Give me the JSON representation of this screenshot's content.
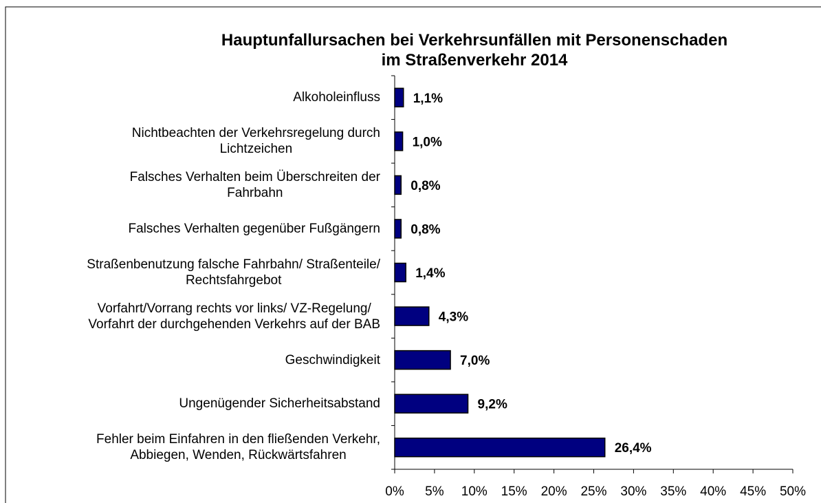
{
  "chart_data": {
    "type": "bar",
    "orientation": "horizontal",
    "title": "Hauptunfallursachen bei Verkehrsunfällen mit Personenschaden\nim Straßenverkehr 2014",
    "categories": [
      "Alkoholeinfluss",
      "Nichtbeachten der Verkehrsregelung durch\nLichtzeichen",
      "Falsches Verhalten beim Überschreiten der\nFahrbahn",
      "Falsches Verhalten gegenüber Fußgängern",
      "Straßenbenutzung falsche Fahrbahn/ Straßenteile/\nRechtsfahrgebot",
      "Vorfahrt/Vorrang rechts vor links/ VZ-Regelung/\nVorfahrt der durchgehenden Verkehrs auf der BAB",
      "Geschwindigkeit",
      "Ungenügender Sicherheitsabstand",
      "Fehler beim Einfahren in den fließenden Verkehr,\nAbbiegen, Wenden, Rückwärtsfahren"
    ],
    "values": [
      1.1,
      1.0,
      0.8,
      0.8,
      1.4,
      4.3,
      7.0,
      9.2,
      26.4
    ],
    "value_labels": [
      "1,1%",
      "1,0%",
      "0,8%",
      "0,8%",
      "1,4%",
      "4,3%",
      "7,0%",
      "9,2%",
      "26,4%"
    ],
    "color": "#000080",
    "xlim": [
      0,
      50
    ],
    "xticks": [
      {
        "value": 0,
        "label": "0%"
      },
      {
        "value": 5,
        "label": "5%"
      },
      {
        "value": 10,
        "label": "10%"
      },
      {
        "value": 15,
        "label": "15%"
      },
      {
        "value": 20,
        "label": "20%"
      },
      {
        "value": 25,
        "label": "25%"
      },
      {
        "value": 30,
        "label": "30%"
      },
      {
        "value": 35,
        "label": "35%"
      },
      {
        "value": 40,
        "label": "40%"
      },
      {
        "value": 45,
        "label": "45%"
      },
      {
        "value": 50,
        "label": "50%"
      }
    ],
    "grid": false
  }
}
